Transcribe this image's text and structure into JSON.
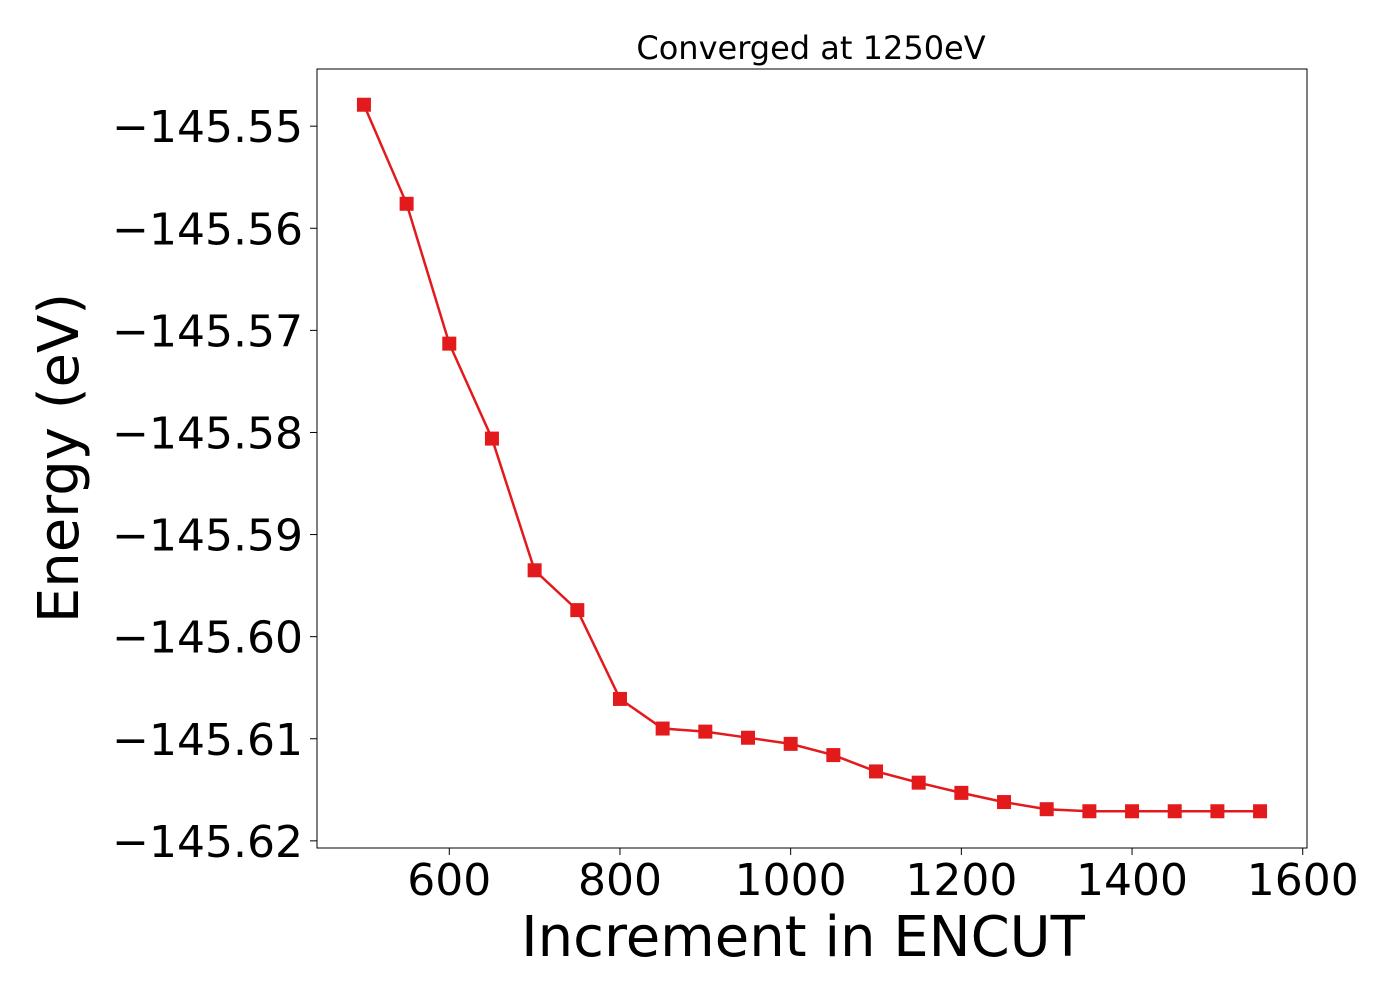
{
  "chart_data": {
    "type": "line",
    "title": "Converged at 1250eV",
    "xlabel": "Increment in ENCUT",
    "ylabel": "Energy (eV)",
    "xlim": [
      445,
      1605
    ],
    "ylim": [
      -145.6207,
      -145.5444
    ],
    "x_ticks": [
      600,
      800,
      1000,
      1200,
      1400,
      1600
    ],
    "x_tick_labels": [
      "600",
      "800",
      "1000",
      "1200",
      "1400",
      "1600"
    ],
    "y_ticks": [
      -145.55,
      -145.56,
      -145.57,
      -145.58,
      -145.59,
      -145.6,
      -145.61,
      -145.62
    ],
    "y_tick_labels": [
      "−145.55",
      "−145.56",
      "−145.57",
      "−145.58",
      "−145.59",
      "−145.60",
      "−145.61",
      "−145.62"
    ],
    "grid": false,
    "series": [
      {
        "color": "#e31a1c",
        "marker": "square",
        "x": [
          500,
          550,
          600,
          650,
          700,
          750,
          800,
          850,
          900,
          950,
          1000,
          1050,
          1100,
          1150,
          1200,
          1250,
          1300,
          1350,
          1400,
          1450,
          1500,
          1550
        ],
        "y": [
          -145.5479,
          -145.5576,
          -145.5713,
          -145.5806,
          -145.5935,
          -145.5974,
          -145.6061,
          -145.609,
          -145.6093,
          -145.6099,
          -145.6105,
          -145.6116,
          -145.6132,
          -145.6143,
          -145.6153,
          -145.6162,
          -145.6169,
          -145.6171,
          -145.6171,
          -145.6171,
          -145.6171,
          -145.6171
        ]
      }
    ]
  }
}
